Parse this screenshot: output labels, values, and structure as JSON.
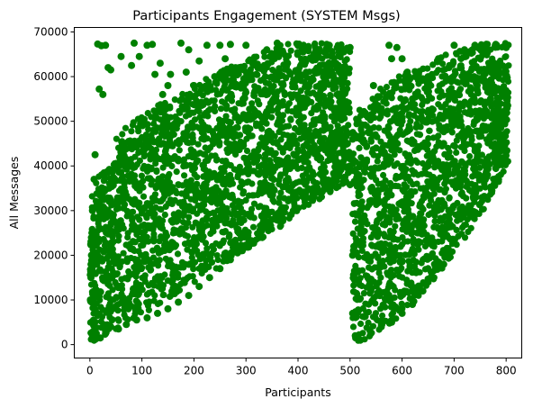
{
  "chart_data": {
    "type": "scatter",
    "title": "Participants Engagement (SYSTEM Msgs)",
    "xlabel": "Participants",
    "ylabel": "All Messages",
    "xlim": [
      -30,
      830
    ],
    "ylim": [
      -3000,
      71000
    ],
    "xticks": [
      0,
      100,
      200,
      300,
      400,
      500,
      600,
      700,
      800
    ],
    "yticks": [
      0,
      10000,
      20000,
      30000,
      40000,
      50000,
      60000,
      70000
    ],
    "grid": false,
    "marker_color": "#008000",
    "clusters": [
      {
        "x_range": [
          0,
          500
        ],
        "y_min_at_x_start": 500,
        "y_min_at_x_end": 37000,
        "y_max": 67500,
        "description_of_density": "dense wedge rising from bottom-left"
      },
      {
        "x_range": [
          505,
          805
        ],
        "y_min_at_x_start": 500,
        "y_min_at_x_end": 40000,
        "y_max": 67500
      }
    ],
    "points": [
      [
        15,
        67300
      ],
      [
        22,
        66900
      ],
      [
        30,
        67000
      ],
      [
        25,
        56000
      ],
      [
        18,
        57200
      ],
      [
        35,
        62000
      ],
      [
        40,
        61500
      ],
      [
        60,
        64500
      ],
      [
        85,
        67500
      ],
      [
        80,
        62500
      ],
      [
        95,
        64500
      ],
      [
        110,
        67000
      ],
      [
        120,
        67200
      ],
      [
        125,
        60500
      ],
      [
        135,
        63000
      ],
      [
        140,
        56000
      ],
      [
        150,
        58000
      ],
      [
        155,
        60500
      ],
      [
        175,
        67500
      ],
      [
        185,
        61000
      ],
      [
        190,
        66000
      ],
      [
        200,
        58000
      ],
      [
        210,
        63500
      ],
      [
        225,
        67000
      ],
      [
        240,
        60000
      ],
      [
        250,
        67000
      ],
      [
        260,
        64000
      ],
      [
        270,
        67200
      ],
      [
        280,
        62000
      ],
      [
        300,
        67000
      ],
      [
        320,
        60500
      ],
      [
        340,
        66000
      ],
      [
        360,
        67500
      ],
      [
        380,
        63000
      ],
      [
        400,
        67000
      ],
      [
        420,
        66500
      ],
      [
        440,
        65500
      ],
      [
        460,
        67000
      ],
      [
        480,
        66000
      ],
      [
        500,
        66500
      ],
      [
        10,
        42500
      ],
      [
        8,
        37000
      ],
      [
        5,
        30000
      ],
      [
        4,
        25000
      ],
      [
        3,
        20000
      ],
      [
        2,
        15000
      ],
      [
        1,
        10000
      ],
      [
        3,
        5000
      ],
      [
        5,
        2000
      ],
      [
        8,
        1000
      ],
      [
        20,
        1500
      ],
      [
        30,
        2500
      ],
      [
        40,
        4000
      ],
      [
        55,
        3500
      ],
      [
        70,
        4500
      ],
      [
        90,
        5500
      ],
      [
        110,
        6000
      ],
      [
        130,
        7000
      ],
      [
        150,
        8000
      ],
      [
        170,
        9500
      ],
      [
        190,
        11000
      ],
      [
        210,
        13000
      ],
      [
        230,
        15000
      ],
      [
        250,
        17000
      ],
      [
        270,
        19000
      ],
      [
        290,
        21000
      ],
      [
        310,
        23000
      ],
      [
        330,
        25500
      ],
      [
        350,
        28000
      ],
      [
        370,
        30500
      ],
      [
        390,
        32500
      ],
      [
        410,
        34000
      ],
      [
        430,
        35000
      ],
      [
        450,
        36000
      ],
      [
        470,
        36500
      ],
      [
        490,
        37500
      ],
      [
        500,
        40000
      ],
      [
        495,
        45000
      ],
      [
        490,
        52000
      ],
      [
        485,
        60000
      ],
      [
        505,
        39000
      ],
      [
        508,
        36500
      ],
      [
        500,
        35800
      ],
      [
        505,
        7000
      ],
      [
        510,
        2000
      ],
      [
        520,
        1000
      ],
      [
        540,
        12000
      ],
      [
        550,
        22000
      ],
      [
        555,
        25000
      ],
      [
        545,
        58000
      ],
      [
        550,
        44000
      ],
      [
        505,
        46000
      ],
      [
        505,
        20000
      ],
      [
        520,
        30000
      ],
      [
        540,
        38000
      ],
      [
        560,
        4000
      ],
      [
        580,
        5000
      ],
      [
        600,
        7000
      ],
      [
        620,
        9000
      ],
      [
        640,
        12000
      ],
      [
        660,
        15000
      ],
      [
        680,
        18000
      ],
      [
        700,
        23000
      ],
      [
        720,
        30000
      ],
      [
        740,
        35000
      ],
      [
        760,
        38000
      ],
      [
        780,
        39500
      ],
      [
        800,
        41000
      ],
      [
        795,
        50000
      ],
      [
        800,
        60000
      ],
      [
        800,
        66500
      ],
      [
        780,
        67200
      ],
      [
        760,
        66500
      ],
      [
        740,
        67000
      ],
      [
        720,
        66000
      ],
      [
        700,
        67000
      ],
      [
        690,
        62000
      ],
      [
        670,
        64000
      ],
      [
        650,
        60000
      ],
      [
        640,
        59500
      ],
      [
        630,
        56000
      ],
      [
        620,
        55000
      ],
      [
        610,
        61000
      ],
      [
        600,
        64000
      ],
      [
        590,
        66500
      ],
      [
        580,
        64000
      ],
      [
        575,
        67000
      ],
      [
        600,
        50000
      ],
      [
        620,
        45000
      ],
      [
        650,
        40000
      ],
      [
        680,
        45000
      ],
      [
        700,
        50000
      ],
      [
        720,
        47000
      ],
      [
        750,
        52000
      ],
      [
        770,
        55000
      ],
      [
        590,
        20000
      ],
      [
        610,
        30000
      ],
      [
        630,
        25000
      ],
      [
        660,
        35000
      ],
      [
        690,
        30000
      ]
    ]
  }
}
